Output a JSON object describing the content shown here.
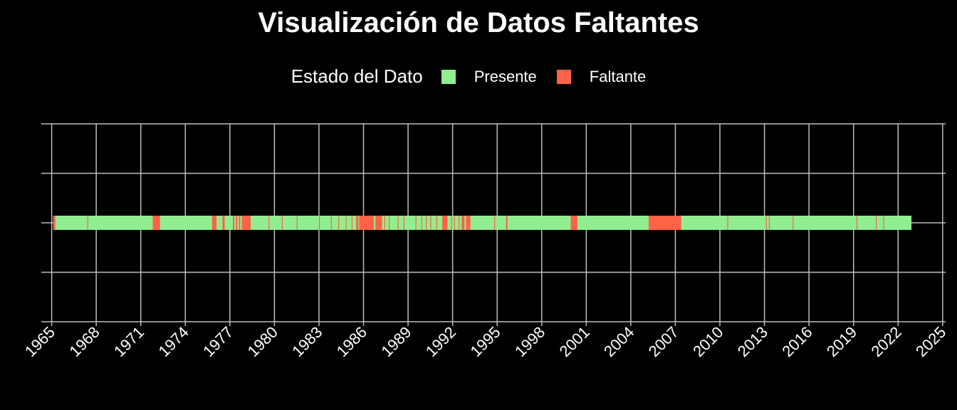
{
  "chart_data": {
    "type": "bar",
    "title": "Visualización de Datos Faltantes",
    "legend": {
      "title": "Estado del Dato",
      "placement": "top",
      "items": [
        {
          "label": "Presente",
          "color": "#90EE90"
        },
        {
          "label": "Faltante",
          "color": "#FF6347"
        }
      ]
    },
    "xlim": [
      1964.3,
      2025.2
    ],
    "x_ticks": [
      "1965",
      "1968",
      "1971",
      "1974",
      "1977",
      "1980",
      "1983",
      "1986",
      "1989",
      "1992",
      "1995",
      "1998",
      "2001",
      "2004",
      "2007",
      "2010",
      "2013",
      "2016",
      "2019",
      "2022",
      "2025"
    ],
    "grid": true,
    "present_range": [
      1965.1,
      2022.9
    ],
    "series": [
      {
        "name": "Faltante",
        "spans": [
          [
            1965.1,
            1965.25
          ],
          [
            1967.4,
            1967.45
          ],
          [
            1971.8,
            1972.3
          ],
          [
            1975.8,
            1976.1
          ],
          [
            1976.5,
            1976.65
          ],
          [
            1977.2,
            1977.3
          ],
          [
            1977.4,
            1977.5
          ],
          [
            1977.6,
            1977.7
          ],
          [
            1977.8,
            1978.4
          ],
          [
            1979.6,
            1979.65
          ],
          [
            1980.5,
            1980.55
          ],
          [
            1981.5,
            1981.55
          ],
          [
            1983.0,
            1983.05
          ],
          [
            1983.8,
            1983.85
          ],
          [
            1984.3,
            1984.35
          ],
          [
            1984.8,
            1984.85
          ],
          [
            1985.2,
            1985.25
          ],
          [
            1985.5,
            1985.65
          ],
          [
            1985.7,
            1986.7
          ],
          [
            1986.8,
            1987.25
          ],
          [
            1987.4,
            1987.45
          ],
          [
            1987.7,
            1987.75
          ],
          [
            1988.3,
            1988.35
          ],
          [
            1988.7,
            1988.75
          ],
          [
            1989.5,
            1989.55
          ],
          [
            1989.9,
            1989.95
          ],
          [
            1990.2,
            1990.25
          ],
          [
            1990.5,
            1990.55
          ],
          [
            1990.9,
            1990.95
          ],
          [
            1991.3,
            1991.65
          ],
          [
            1991.9,
            1991.95
          ],
          [
            1992.1,
            1992.15
          ],
          [
            1992.4,
            1992.45
          ],
          [
            1992.6,
            1992.8
          ],
          [
            1992.9,
            1993.2
          ],
          [
            1994.8,
            1994.85
          ],
          [
            1995.6,
            1995.7
          ],
          [
            1999.95,
            2000.4
          ],
          [
            2005.2,
            2007.4
          ],
          [
            2010.5,
            2010.55
          ],
          [
            2013.1,
            2013.15
          ],
          [
            2013.3,
            2013.35
          ],
          [
            2014.9,
            2014.95
          ],
          [
            2019.2,
            2019.25
          ],
          [
            2020.5,
            2020.55
          ],
          [
            2021.0,
            2021.05
          ]
        ]
      }
    ]
  }
}
